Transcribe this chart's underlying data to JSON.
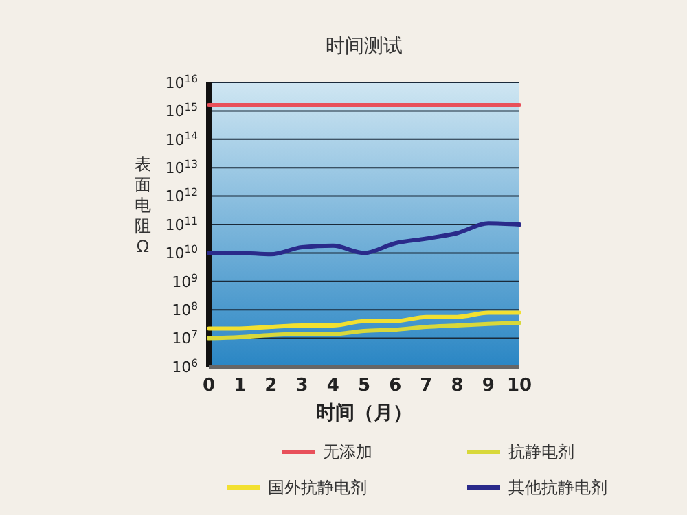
{
  "chart_data": {
    "type": "line",
    "title": "时间测试",
    "xlabel": "时间（月）",
    "ylabel": "表面电阻Ω",
    "x": [
      0,
      1,
      2,
      3,
      4,
      5,
      6,
      7,
      8,
      9,
      10
    ],
    "series": [
      {
        "name": "无添加",
        "color": "#e8505a",
        "values": [
          1600000000000000.0,
          1600000000000000.0,
          1600000000000000.0,
          1600000000000000.0,
          1600000000000000.0,
          1600000000000000.0,
          1600000000000000.0,
          1600000000000000.0,
          1600000000000000.0,
          1600000000000000.0,
          1600000000000000.0
        ]
      },
      {
        "name": "抗静电剂",
        "color": "#d8d83a",
        "values": [
          10000000.0,
          11000000.0,
          13000000.0,
          14000000.0,
          14000000.0,
          18000000.0,
          20000000.0,
          25000000.0,
          28000000.0,
          32000000.0,
          35000000.0
        ]
      },
      {
        "name": "国外抗静电剂",
        "color": "#f2e030",
        "values": [
          22000000.0,
          22000000.0,
          25000000.0,
          28000000.0,
          28000000.0,
          40000000.0,
          40000000.0,
          56000000.0,
          56000000.0,
          79000000.0,
          79000000.0
        ]
      },
      {
        "name": "其他抗静电剂",
        "color": "#2a2a8a",
        "values": [
          10000000000.0,
          10000000000.0,
          9000000000.0,
          16000000000.0,
          18000000000.0,
          10000000000.0,
          22000000000.0,
          32000000000.0,
          50000000000.0,
          110000000000.0,
          100000000000.0
        ]
      }
    ],
    "xlim": [
      0,
      10
    ],
    "xticks": [
      0,
      1,
      2,
      3,
      4,
      5,
      6,
      7,
      8,
      9,
      10
    ],
    "ylim": [
      1000000.0,
      1e+16
    ],
    "yticks": [
      {
        "value": 1000000.0,
        "label": "10$^{6}$"
      },
      {
        "value": 10000000.0,
        "label": "10$^{7}$"
      },
      {
        "value": 100000000.0,
        "label": "10$^{8}$"
      },
      {
        "value": 1000000000.0,
        "label": "10$^{9}$"
      },
      {
        "value": 10000000000.0,
        "label": "10$^{10}$"
      },
      {
        "value": 100000000000.0,
        "label": "10$^{11}$"
      },
      {
        "value": 1000000000000.0,
        "label": "10$^{12}$"
      },
      {
        "value": 10000000000000.0,
        "label": "10$^{13}$"
      },
      {
        "value": 100000000000000.0,
        "label": "10$^{14}$"
      },
      {
        "value": 1000000000000000.0,
        "label": "10$^{15}$"
      },
      {
        "value": 1e+16,
        "label": "10$^{16}$"
      }
    ],
    "log": true,
    "grid": "y",
    "legend": "bottom",
    "line_style": "solid",
    "marker": "none"
  }
}
